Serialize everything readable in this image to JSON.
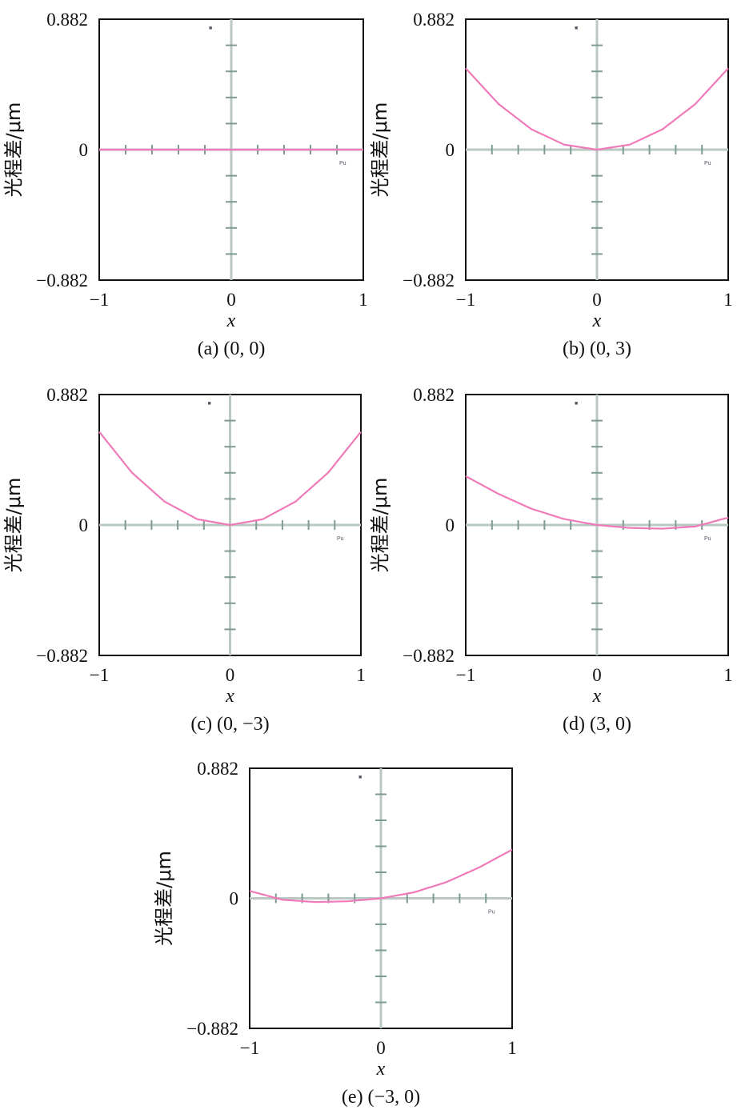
{
  "figure": {
    "colors": {
      "curve": "#f07ab8",
      "axis_cross": "#b9c8c2",
      "tick": "#7f9a92",
      "frame": "#111111"
    }
  },
  "chart_data": [
    {
      "type": "line",
      "caption": "(a) (0, 0)",
      "xlabel": "x",
      "ylabel": "光程差/μm",
      "xlim": [
        -1,
        1
      ],
      "ylim": [
        -0.882,
        0.882
      ],
      "xticks": [
        "−1",
        "0",
        "1"
      ],
      "yticks": [
        "−0.882",
        "0",
        "0.882"
      ],
      "markers": {
        "top": "■",
        "right": "Pu"
      },
      "series": [
        {
          "x": [
            -1,
            -0.75,
            -0.5,
            -0.25,
            0,
            0.25,
            0.5,
            0.75,
            1
          ],
          "y": [
            0,
            0,
            0,
            0,
            0,
            0,
            0,
            0,
            0
          ]
        }
      ]
    },
    {
      "type": "line",
      "caption": "(b) (0, 3)",
      "xlabel": "x",
      "ylabel": "光程差/μm",
      "xlim": [
        -1,
        1
      ],
      "ylim": [
        -0.882,
        0.882
      ],
      "xticks": [
        "−1",
        "0",
        "1"
      ],
      "yticks": [
        "−0.882",
        "0",
        "0.882"
      ],
      "markers": {
        "top": "■",
        "right": "Pu"
      },
      "series": [
        {
          "x": [
            -1,
            -0.75,
            -0.5,
            -0.25,
            0,
            0.25,
            0.5,
            0.75,
            1
          ],
          "y": [
            0.55,
            0.309,
            0.138,
            0.034,
            0,
            0.034,
            0.138,
            0.309,
            0.55
          ]
        }
      ]
    },
    {
      "type": "line",
      "caption": "(c) (0, −3)",
      "xlabel": "x",
      "ylabel": "光程差/μm",
      "xlim": [
        -1,
        1
      ],
      "ylim": [
        -0.882,
        0.882
      ],
      "xticks": [
        "−1",
        "0",
        "1"
      ],
      "yticks": [
        "−0.882",
        "0",
        "0.882"
      ],
      "markers": {
        "top": "■",
        "right": "Pu"
      },
      "series": [
        {
          "x": [
            -1,
            -0.75,
            -0.5,
            -0.25,
            0,
            0.25,
            0.5,
            0.75,
            1
          ],
          "y": [
            0.63,
            0.354,
            0.158,
            0.039,
            0,
            0.039,
            0.158,
            0.354,
            0.63
          ]
        }
      ]
    },
    {
      "type": "line",
      "caption": "(d) (3, 0)",
      "xlabel": "x",
      "ylabel": "光程差/μm",
      "xlim": [
        -1,
        1
      ],
      "ylim": [
        -0.882,
        0.882
      ],
      "xticks": [
        "−1",
        "0",
        "1"
      ],
      "yticks": [
        "−0.882",
        "0",
        "0.882"
      ],
      "markers": {
        "top": "■",
        "right": "Pu"
      },
      "series": [
        {
          "x": [
            -1,
            -0.75,
            -0.5,
            -0.25,
            0,
            0.25,
            0.5,
            0.75,
            1
          ],
          "y": [
            0.33,
            0.21,
            0.11,
            0.04,
            0,
            -0.02,
            -0.025,
            -0.01,
            0.05
          ]
        }
      ]
    },
    {
      "type": "line",
      "caption": "(e) (−3, 0)",
      "xlabel": "x",
      "ylabel": "光程差/μm",
      "xlim": [
        -1,
        1
      ],
      "ylim": [
        -0.882,
        0.882
      ],
      "xticks": [
        "−1",
        "0",
        "1"
      ],
      "yticks": [
        "−0.882",
        "0",
        "0.882"
      ],
      "markers": {
        "top": "■",
        "right": "Pu"
      },
      "series": [
        {
          "x": [
            -1,
            -0.75,
            -0.5,
            -0.25,
            0,
            0.25,
            0.5,
            0.75,
            1
          ],
          "y": [
            0.05,
            -0.01,
            -0.025,
            -0.02,
            0,
            0.04,
            0.11,
            0.21,
            0.33
          ]
        }
      ]
    }
  ]
}
